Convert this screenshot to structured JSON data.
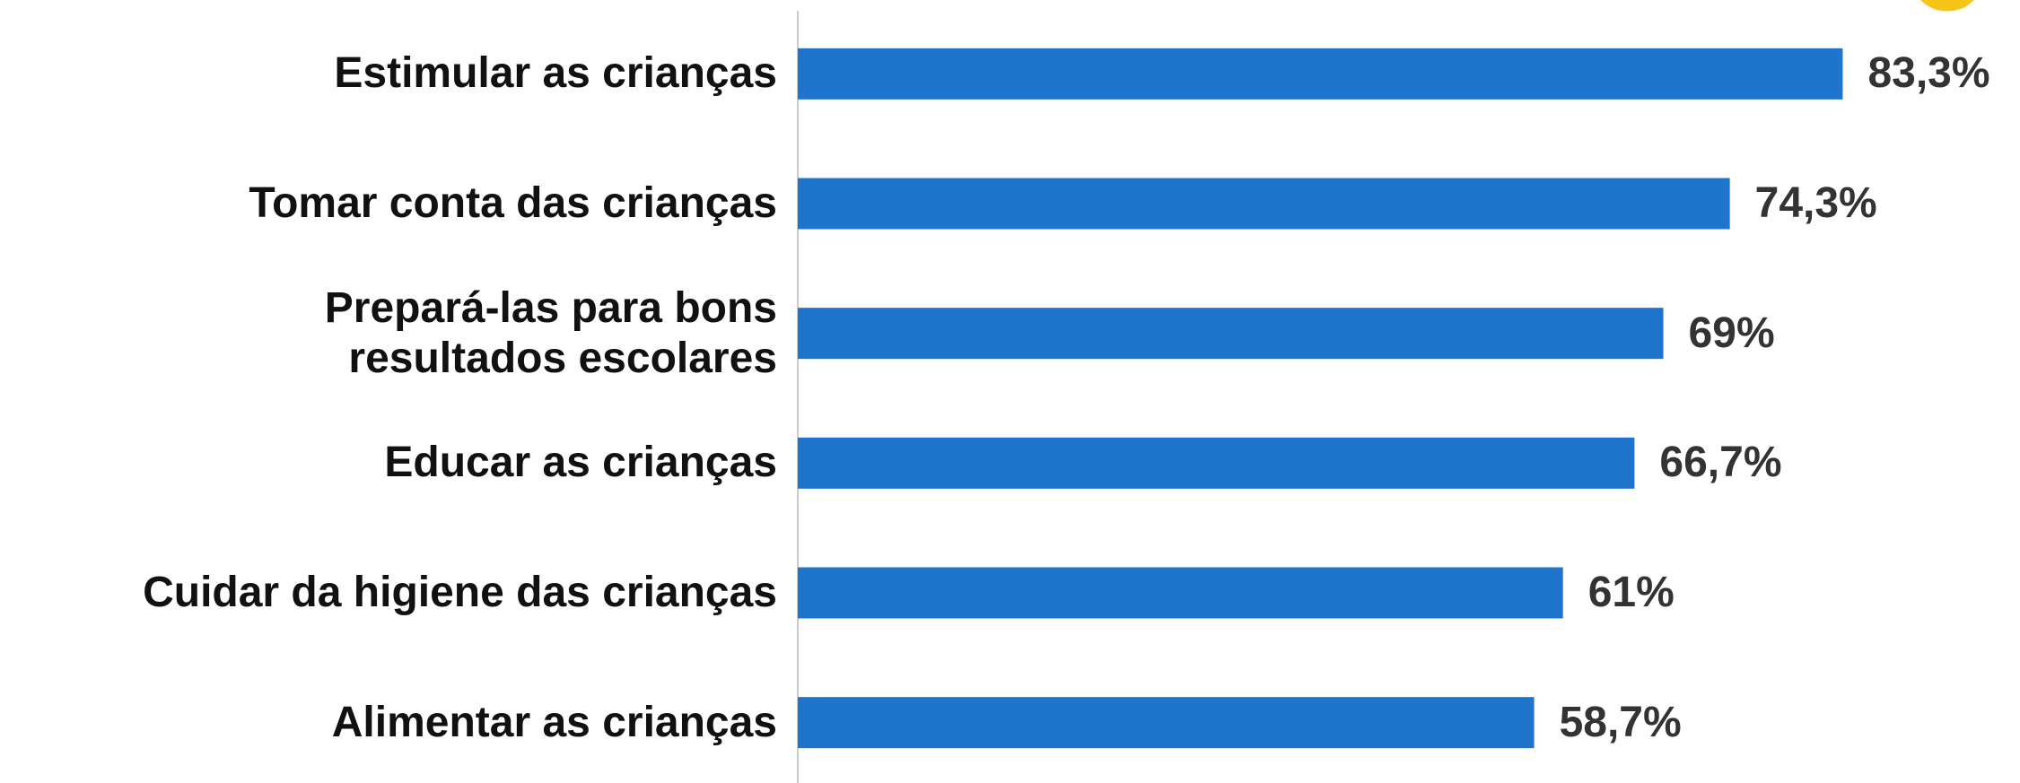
{
  "chart_data": {
    "type": "barh",
    "categories": [
      "Estimular as crianças",
      "Tomar conta das crianças",
      "Prepará-las para bons resultados escolares",
      "Educar as crianças",
      "Cuidar da higiene das crianças",
      "Alimentar as crianças"
    ],
    "values": [
      83.3,
      74.3,
      69,
      66.7,
      61,
      58.7
    ],
    "value_labels": [
      "83,3%",
      "74,3%",
      "69%",
      "66,7%",
      "61%",
      "58,7%"
    ],
    "color": "#1f74cc",
    "xlim": [
      0,
      95
    ]
  }
}
